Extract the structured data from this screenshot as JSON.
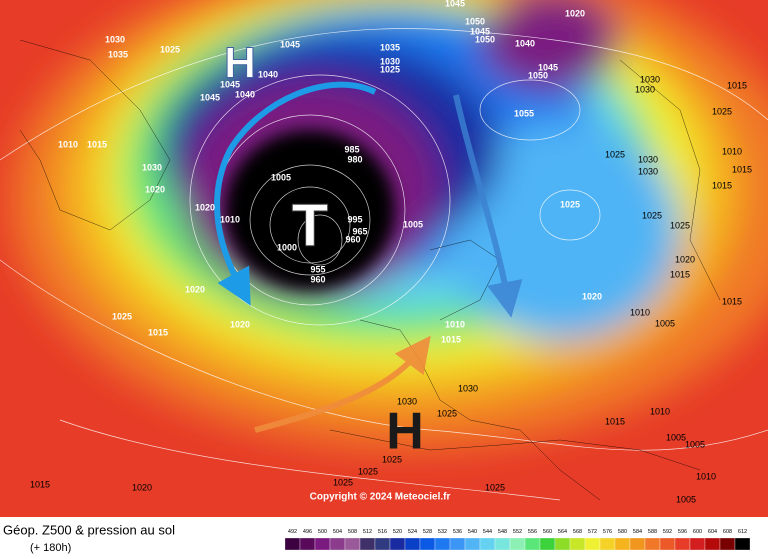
{
  "title": "Géop. Z500 & pression au sol",
  "subtitle": "(+ 180h)",
  "copyright": "Copyright © 2024 Meteociel.fr",
  "annotations": [
    "H",
    "T",
    "H"
  ],
  "isobar_labels": [
    "1030",
    "1035",
    "1025",
    "1045",
    "1040",
    "1045",
    "1040",
    "1045",
    "1035",
    "1030",
    "1025",
    "1045",
    "1050",
    "1045",
    "1050",
    "1040",
    "1020",
    "1045",
    "1050",
    "1030",
    "1030",
    "1015",
    "1025",
    "1055",
    "1010",
    "1015",
    "1030",
    "1020",
    "985",
    "980",
    "1005",
    "1025",
    "1030",
    "1030",
    "1010",
    "1015",
    "1015",
    "1025",
    "1025",
    "1025",
    "1020",
    "1010",
    "1005",
    "995",
    "965",
    "960",
    "1000",
    "955",
    "960",
    "1020",
    "1015",
    "1015",
    "1020",
    "1020",
    "1025",
    "1015",
    "1020",
    "1010",
    "1015",
    "1010",
    "1005",
    "1030",
    "1030",
    "1025",
    "1015",
    "1010",
    "1005",
    "1005",
    "1025",
    "1025",
    "1025",
    "1020",
    "1015",
    "1025",
    "1005",
    "1010"
  ],
  "colorbar": {
    "ticks": [
      492,
      496,
      500,
      504,
      508,
      512,
      516,
      520,
      524,
      528,
      532,
      536,
      540,
      544,
      548,
      552,
      556,
      560,
      564,
      568,
      572,
      576,
      580,
      584,
      588,
      592,
      596,
      600,
      604,
      608,
      612
    ],
    "colors": [
      "#3c0040",
      "#5a0a5a",
      "#7a1a80",
      "#8c3c8c",
      "#9a5a9a",
      "#40306a",
      "#303a80",
      "#1a2aa0",
      "#0a40c8",
      "#0a5ae6",
      "#1e78f0",
      "#3c96f5",
      "#50b4f5",
      "#64d2f0",
      "#78e6dc",
      "#8cf0b4",
      "#5ae678",
      "#3cd23c",
      "#8cdc28",
      "#c8e628",
      "#f0f032",
      "#f5d228",
      "#f5b41e",
      "#f0961e",
      "#f07828",
      "#eb5a28",
      "#e63c28",
      "#d21e1e",
      "#b40a0a",
      "#780000",
      "#000000"
    ]
  }
}
